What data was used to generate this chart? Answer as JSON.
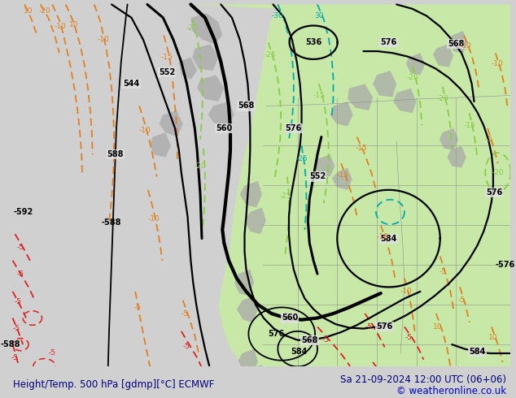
{
  "title_left": "Height/Temp. 500 hPa [gdmp][°C] ECMWF",
  "title_right": "Sa 21-09-2024 12:00 UTC (06+06)",
  "copyright": "© weatheronline.co.uk",
  "bg_color": "#d0d0d0",
  "map_bg_color": "#e0e0e0",
  "green_fill_color": "#c8e8a8",
  "land_gray_color": "#a8a8a8",
  "title_color": "#000080",
  "copyright_color": "#0000cc",
  "title_fontsize": 8.5,
  "copyright_fontsize": 8.5,
  "orange": "#e08020",
  "red": "#dd2020",
  "green_line": "#88cc44",
  "cyan_line": "#00aaaa",
  "black_contour": "#000000"
}
